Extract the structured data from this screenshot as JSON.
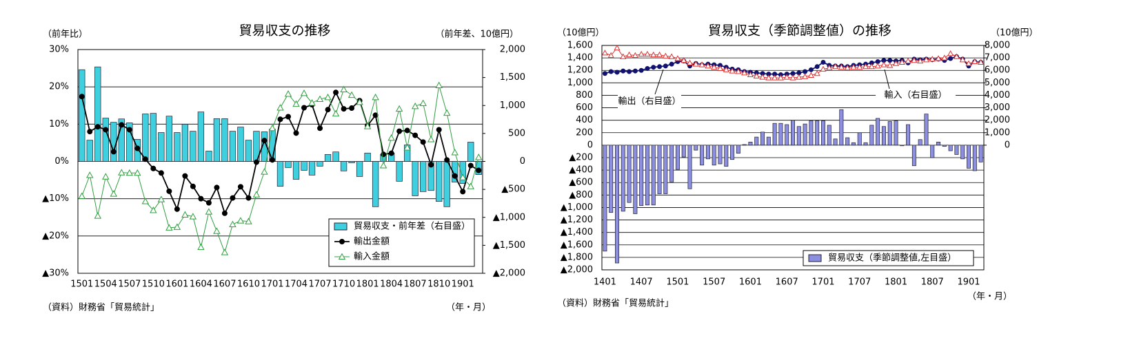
{
  "chart_data": [
    {
      "type": "combo",
      "title": "貿易収支の推移",
      "y_label": "（前年比）",
      "y2_label": "（前年差、10億円）",
      "notes": [
        "（資料）財務省「貿易統計」",
        "（年・月）"
      ],
      "categories": [
        "1501",
        null,
        null,
        "1504",
        null,
        null,
        "1507",
        null,
        null,
        "1510",
        null,
        null,
        "1601",
        null,
        null,
        "1604",
        null,
        null,
        "1607",
        null,
        null,
        "1610",
        null,
        null,
        "1701",
        null,
        null,
        "1704",
        null,
        null,
        "1707",
        null,
        null,
        "1710",
        null,
        null,
        "1801",
        null,
        null,
        "1804",
        null,
        null,
        "1807",
        null,
        null,
        "1810",
        null,
        null,
        "1901",
        null,
        null
      ],
      "ylim": [
        -30,
        30
      ],
      "yticks": [
        {
          "value": 30,
          "label": "30%"
        },
        {
          "value": 20,
          "label": "20%"
        },
        {
          "value": 10,
          "label": "10%"
        },
        {
          "value": 0,
          "label": "0%"
        },
        {
          "value": -10,
          "label": "▲10%"
        },
        {
          "value": -20,
          "label": "▲20%"
        },
        {
          "value": -30,
          "label": "▲30%"
        }
      ],
      "y2lim": [
        -2000,
        2000
      ],
      "y2ticks": [
        {
          "value": 2000,
          "label": "2,000"
        },
        {
          "value": 1500,
          "label": "1,500"
        },
        {
          "value": 1000,
          "label": "1,000"
        },
        500,
        0,
        {
          "value": -500,
          "label": "▲500"
        },
        {
          "value": -1000,
          "label": "▲1,000"
        },
        {
          "value": -1500,
          "label": "▲1,500"
        },
        {
          "value": -2000,
          "label": "▲2,000"
        }
      ],
      "grid": true,
      "legend": "lower right",
      "series": [
        {
          "name": "貿易収支・前年差（右目盛）",
          "type": "bar",
          "axis": "y2",
          "color": "#3fd0e0",
          "values": [
            1640,
            380,
            1690,
            775,
            700,
            760,
            690,
            395,
            850,
            860,
            517,
            810,
            517,
            665,
            540,
            885,
            185,
            765,
            765,
            540,
            615,
            380,
            540,
            530,
            580,
            -445,
            -110,
            -320,
            -160,
            -245,
            -85,
            125,
            170,
            -170,
            -25,
            -270,
            150,
            -810,
            125,
            150,
            -355,
            295,
            -615,
            -540,
            -520,
            -715,
            -810,
            -370,
            -395,
            345,
            -235
          ]
        },
        {
          "name": "輸出金額",
          "type": "line",
          "axis": "y",
          "color": "#000000",
          "marker": "circle",
          "values": [
            17.4,
            8.0,
            9.3,
            8.5,
            2.6,
            9.8,
            8.5,
            3.5,
            0.6,
            -1.9,
            -3.1,
            -8.0,
            -12.8,
            -3.9,
            -6.7,
            -10.0,
            -11.1,
            -7.0,
            -13.9,
            -9.8,
            -6.8,
            -9.8,
            -0.2,
            5.6,
            0.4,
            11.3,
            12.0,
            7.6,
            14.4,
            15.2,
            8.9,
            13.9,
            18.5,
            14.1,
            14.3,
            16.3,
            9.6,
            12.4,
            1.9,
            2.2,
            8.1,
            8.3,
            7.0,
            5.2,
            -0.9,
            8.5,
            0.4,
            -3.9,
            -8.1,
            -1.1,
            -2.4
          ]
        },
        {
          "name": "輸入金額",
          "type": "line",
          "axis": "y",
          "color": "#2e9e3e",
          "marker": "triangle",
          "values": [
            -9.3,
            -3.7,
            -14.6,
            -4.1,
            -8.7,
            -3.0,
            -3.1,
            -3.1,
            -10.7,
            -13.1,
            -10.2,
            -17.8,
            -17.6,
            -14.3,
            -14.8,
            -23.0,
            -13.5,
            -18.7,
            -24.4,
            -16.9,
            -15.9,
            -16.1,
            -8.9,
            -2.8,
            8.9,
            14.4,
            18.1,
            15.4,
            18.3,
            15.7,
            16.7,
            17.2,
            12.8,
            19.3,
            17.8,
            15.9,
            9.4,
            17.2,
            -1.1,
            6.3,
            14.1,
            3.7,
            14.8,
            15.6,
            5.9,
            20.4,
            13.0,
            2.4,
            -4.3,
            -6.7,
            1.1
          ]
        }
      ]
    },
    {
      "type": "combo",
      "title": "貿易収支（季節調整値）の推移",
      "y_label": "（10億円）",
      "y2_label": "（10億円）",
      "notes": [
        "（資料）財務省「貿易統計」",
        "（年・月）"
      ],
      "annotations": [
        "輸出（右目盛）",
        "輸入（右目盛）"
      ],
      "categories": [
        "1401",
        null,
        null,
        null,
        null,
        null,
        "1407",
        null,
        null,
        null,
        null,
        null,
        "1501",
        null,
        null,
        null,
        null,
        null,
        "1507",
        null,
        null,
        null,
        null,
        null,
        "1601",
        null,
        null,
        null,
        null,
        null,
        "1607",
        null,
        null,
        null,
        null,
        null,
        "1701",
        null,
        null,
        null,
        null,
        null,
        "1707",
        null,
        null,
        null,
        null,
        null,
        "1801",
        null,
        null,
        null,
        null,
        null,
        "1807",
        null,
        null,
        null,
        null,
        null,
        "1901",
        null,
        null
      ],
      "ylim": [
        -2000,
        1600
      ],
      "yticks": [
        {
          "value": 1600,
          "label": "1,600"
        },
        {
          "value": 1400,
          "label": "1,400"
        },
        {
          "value": 1200,
          "label": "1,200"
        },
        {
          "value": 1000,
          "label": "1,000"
        },
        800,
        600,
        400,
        200,
        0,
        {
          "value": -200,
          "label": "▲200"
        },
        {
          "value": -400,
          "label": "▲400"
        },
        {
          "value": -600,
          "label": "▲600"
        },
        {
          "value": -800,
          "label": "▲800"
        },
        {
          "value": -1000,
          "label": "▲1,000"
        },
        {
          "value": -1200,
          "label": "▲1,200"
        },
        {
          "value": -1400,
          "label": "▲1,400"
        },
        {
          "value": -1600,
          "label": "▲1,600"
        },
        {
          "value": -1800,
          "label": "▲1,800"
        },
        {
          "value": -2000,
          "label": "▲2,000"
        }
      ],
      "y2lim": [
        -10000,
        8000
      ],
      "y2ticks": [
        {
          "value": 8000,
          "label": "8,000"
        },
        {
          "value": 7000,
          "label": "7,000"
        },
        {
          "value": 6000,
          "label": "6,000"
        },
        {
          "value": 5000,
          "label": "5,000"
        },
        {
          "value": 4000,
          "label": "4,000"
        },
        {
          "value": 3000,
          "label": "3,000"
        },
        {
          "value": 2000,
          "label": "2,000"
        },
        {
          "value": 1000,
          "label": "1,000"
        },
        0
      ],
      "grid": true,
      "legend": "lower right",
      "series": [
        {
          "name": "貿易収支（季節調整値,左目盛）",
          "type": "bar",
          "axis": "y",
          "color": "#8c8ee0",
          "values": [
            -1700,
            -1080,
            -1890,
            -1060,
            -920,
            -1100,
            -970,
            -960,
            -960,
            -780,
            -780,
            -590,
            -390,
            -190,
            -700,
            -80,
            -320,
            -220,
            -320,
            -300,
            -340,
            -230,
            -130,
            10,
            50,
            130,
            210,
            130,
            350,
            350,
            330,
            400,
            300,
            340,
            390,
            390,
            390,
            320,
            100,
            570,
            120,
            40,
            200,
            40,
            320,
            430,
            300,
            380,
            390,
            -10,
            330,
            -330,
            90,
            500,
            -200,
            50,
            -20,
            -90,
            -150,
            -220,
            -370,
            -410,
            -270
          ]
        },
        {
          "name": "輸出",
          "type": "line",
          "axis": "y2",
          "color": "#10126e",
          "marker": "circle",
          "legend": false,
          "values": [
            5750,
            5900,
            5850,
            5950,
            5900,
            5950,
            6000,
            6150,
            6250,
            6300,
            6350,
            6500,
            6700,
            6750,
            6350,
            6550,
            6450,
            6500,
            6450,
            6400,
            6250,
            6100,
            6050,
            5900,
            5850,
            5800,
            5750,
            5700,
            5700,
            5650,
            5700,
            5750,
            5800,
            5900,
            6050,
            6300,
            6650,
            6400,
            6350,
            6350,
            6300,
            6400,
            6450,
            6500,
            6600,
            6700,
            6800,
            6800,
            6750,
            6800,
            6600,
            6900,
            6850,
            6900,
            6850,
            6900,
            6800,
            6950,
            7100,
            6900,
            6350,
            6700,
            6650
          ]
        },
        {
          "name": "輸入",
          "type": "line",
          "axis": "y2",
          "color": "#e03030",
          "marker": "triangle",
          "legend": false,
          "values": [
            7400,
            7200,
            7800,
            7100,
            7250,
            7200,
            7300,
            7300,
            7250,
            7250,
            7150,
            7100,
            6950,
            6800,
            6600,
            6500,
            6450,
            6350,
            6250,
            6150,
            6050,
            5950,
            5900,
            5800,
            5650,
            5550,
            5450,
            5400,
            5400,
            5400,
            5450,
            5400,
            5450,
            5500,
            5600,
            5750,
            6100,
            6200,
            6300,
            6250,
            6200,
            6250,
            6250,
            6300,
            6300,
            6350,
            6450,
            6400,
            6550,
            6650,
            6750,
            6800,
            6750,
            6850,
            6900,
            6950,
            7000,
            7350,
            7100,
            6850,
            6550,
            6700,
            6650
          ]
        }
      ]
    }
  ]
}
